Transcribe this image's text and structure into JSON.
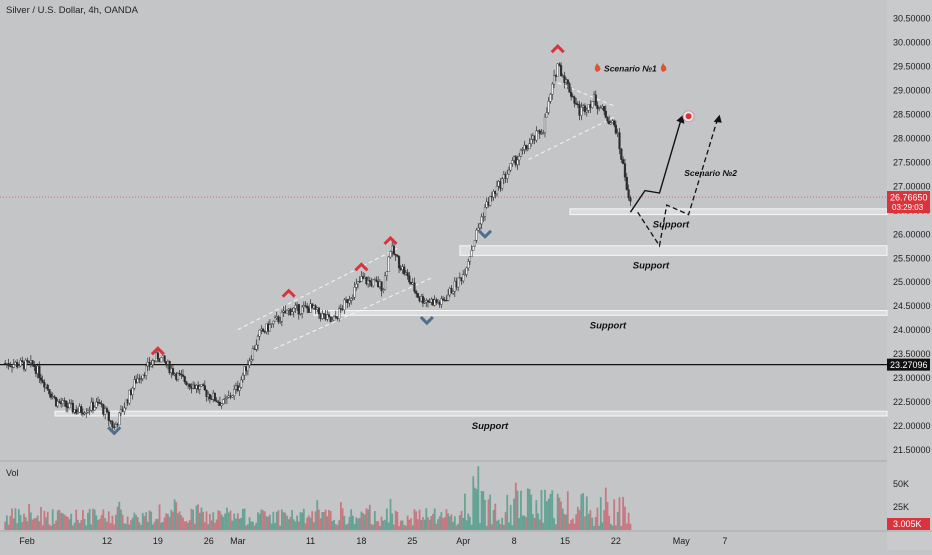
{
  "header": {
    "title": "Silver / U.S. Dollar, 4h, OANDA"
  },
  "volume_pane": {
    "label": "Vol"
  },
  "colors": {
    "up": "#2b2b2b",
    "down": "#2b2b2b",
    "vol_up": "#5b9e8f",
    "vol_down": "#c8707a",
    "peak_marker": "#d9343c",
    "trough_marker": "#4f6e8e",
    "price_tag": "#d9343c",
    "level_tag": "#111111"
  },
  "chart_data": {
    "type": "candlestick",
    "title": "Silver / U.S. Dollar, 4h, OANDA",
    "y_axis": {
      "ticks": [
        "30.50000",
        "30.00000",
        "29.50000",
        "29.00000",
        "28.50000",
        "28.00000",
        "27.50000",
        "27.00000",
        "26.50000",
        "26.00000",
        "25.50000",
        "25.00000",
        "24.50000",
        "24.00000",
        "23.50000",
        "23.00000",
        "22.50000",
        "22.00000",
        "21.50000"
      ],
      "ylim": [
        21.3,
        30.6
      ]
    },
    "x_axis": {
      "ticks": [
        "Feb",
        "12",
        "19",
        "26",
        "Mar",
        "11",
        "18",
        "25",
        "Apr",
        "8",
        "15",
        "22",
        "May",
        "7"
      ]
    },
    "current_price": {
      "value": "26.76650",
      "countdown": "03:29:03"
    },
    "horizontal_level": {
      "value": "23.27096"
    },
    "volume_axis": {
      "ticks": [
        "50K",
        "25K"
      ],
      "current": "3.005K"
    },
    "price_path": [
      {
        "date": "Jan 29",
        "price": 23.3
      },
      {
        "date": "Feb 2",
        "price": 23.25
      },
      {
        "date": "Feb 5",
        "price": 22.5
      },
      {
        "date": "Feb 8",
        "price": 22.3
      },
      {
        "date": "Feb 11",
        "price": 22.45
      },
      {
        "date": "Feb 13",
        "price": 21.95
      },
      {
        "date": "Feb 16",
        "price": 22.95
      },
      {
        "date": "Feb 19",
        "price": 23.45
      },
      {
        "date": "Feb 22",
        "price": 23.0
      },
      {
        "date": "Feb 25",
        "price": 22.75
      },
      {
        "date": "Feb 28",
        "price": 22.45
      },
      {
        "date": "Mar 1",
        "price": 22.8
      },
      {
        "date": "Mar 4",
        "price": 23.9
      },
      {
        "date": "Mar 8",
        "price": 24.4
      },
      {
        "date": "Mar 11",
        "price": 24.45
      },
      {
        "date": "Mar 14",
        "price": 24.15
      },
      {
        "date": "Mar 18",
        "price": 25.05
      },
      {
        "date": "Mar 21",
        "price": 24.9
      },
      {
        "date": "Mar 22",
        "price": 25.7
      },
      {
        "date": "Mar 26",
        "price": 24.65
      },
      {
        "date": "Mar 29",
        "price": 24.55
      },
      {
        "date": "Apr 1",
        "price": 25.15
      },
      {
        "date": "Apr 4",
        "price": 26.55
      },
      {
        "date": "Apr 8",
        "price": 27.5
      },
      {
        "date": "Apr 12",
        "price": 28.2
      },
      {
        "date": "Apr 14",
        "price": 29.55
      },
      {
        "date": "Apr 17",
        "price": 28.55
      },
      {
        "date": "Apr 19",
        "price": 28.8
      },
      {
        "date": "Apr 22",
        "price": 28.2
      },
      {
        "date": "Apr 24",
        "price": 26.6
      }
    ],
    "support_zones": [
      {
        "low": 22.2,
        "high": 22.3,
        "label": "Support"
      },
      {
        "low": 24.3,
        "high": 24.4,
        "label": "Support"
      },
      {
        "low": 25.55,
        "high": 25.75,
        "label": "Support"
      },
      {
        "low": 26.4,
        "high": 26.52,
        "label": "Support"
      }
    ],
    "peaks": [
      {
        "date": "Feb 19",
        "price": 23.55
      },
      {
        "date": "Mar 8",
        "price": 24.75
      },
      {
        "date": "Mar 18",
        "price": 25.3
      },
      {
        "date": "Mar 22",
        "price": 25.85
      },
      {
        "date": "Apr 14",
        "price": 29.85
      }
    ],
    "troughs": [
      {
        "date": "Feb 13",
        "price": 21.9
      },
      {
        "date": "Mar 27",
        "price": 24.2
      },
      {
        "date": "Apr 4",
        "price": 26.0
      }
    ],
    "annotations": [
      {
        "text": "Scenario №1",
        "icon": "fire-icon"
      },
      {
        "text": "Scenario №2"
      }
    ]
  }
}
